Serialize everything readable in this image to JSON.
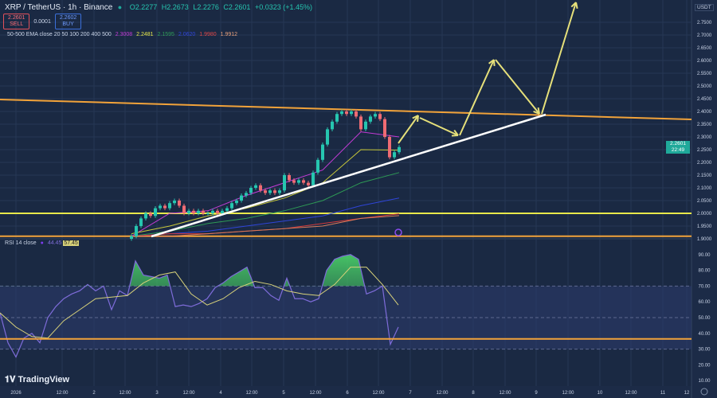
{
  "header": {
    "symbol": "XRP / TetherUS · 1h · Binance",
    "ohlc": [
      "O2.2277",
      "H2.2673",
      "L2.2276",
      "C2.2601",
      "+0.0323 (+1.45%)"
    ],
    "sell_price": "2.2601",
    "sell_label": "SELL",
    "spread": "0.0001",
    "buy_price": "2.2602",
    "buy_label": "BUY",
    "ema_label": "50-500 EMA close 20 50 100 200 400 500",
    "ema_values": [
      "2.3008",
      "2.2481",
      "2.1595",
      "2.0620",
      "1.9980",
      "1.9912"
    ],
    "rsi_label": "RSI 14 close",
    "rsi_values": [
      "44.45",
      "57.45"
    ]
  },
  "axis": {
    "unit": "USDT",
    "price_ticks": [
      "2.7500",
      "2.7000",
      "2.6500",
      "2.6000",
      "2.5500",
      "2.5000",
      "2.4500",
      "2.4000",
      "2.3500",
      "2.3000",
      "2.2500",
      "2.2000",
      "2.1500",
      "2.1000",
      "2.0500",
      "2.0000",
      "1.9500",
      "1.9000"
    ],
    "last_price": "2.2601",
    "countdown": "22:49",
    "rsi_ticks": [
      "90.00",
      "80.00",
      "70.00",
      "60.00",
      "50.00",
      "40.00",
      "30.00",
      "20.00",
      "10.00"
    ],
    "time_ticks": [
      "2026",
      "12:00",
      "2",
      "12:00",
      "3",
      "12:00",
      "4",
      "12:00",
      "5",
      "12:00",
      "6",
      "12:00",
      "7",
      "12:00",
      "8",
      "12:00",
      "9",
      "12:00",
      "10",
      "12:00",
      "11",
      "12"
    ]
  },
  "brand": "TradingView",
  "colors": {
    "background": "#1a2943",
    "up": "#26c6b0",
    "down": "#ef6b73",
    "ema": [
      "#c43bd6",
      "#c8c83a",
      "#2e9a55",
      "#2f45d8",
      "#d23a3a",
      "#d77a5a"
    ],
    "rsi": "#7e6cd9",
    "rsi_ma": "#d8d27a",
    "resistance": "#f2a33a",
    "support": "#e8e84a",
    "trendline": "#ffffff",
    "projection": "#e6e07a"
  },
  "chart_data": [
    {
      "type": "candlestick",
      "title": "XRP / TetherUS · 1h · Binance",
      "ylim": [
        1.9,
        2.77
      ],
      "closes": [
        1.91,
        1.95,
        1.98,
        2.0,
        1.99,
        2.02,
        2.03,
        2.02,
        2.04,
        2.05,
        2.03,
        2.0,
        2.01,
        2.0,
        2.01,
        2.0,
        2.0,
        2.01,
        2.0,
        2.01,
        2.02,
        2.04,
        2.05,
        2.07,
        2.08,
        2.1,
        2.11,
        2.09,
        2.08,
        2.09,
        2.08,
        2.09,
        2.15,
        2.13,
        2.12,
        2.13,
        2.12,
        2.11,
        2.16,
        2.21,
        2.27,
        2.33,
        2.36,
        2.39,
        2.4,
        2.39,
        2.4,
        2.38,
        2.33,
        2.36,
        2.38,
        2.39,
        2.37,
        2.3,
        2.22,
        2.24,
        2.26
      ],
      "ema_series": [
        {
          "name": "EMA 20",
          "values": [
            1.91,
            2.0,
            2.01,
            2.07,
            2.12,
            2.17,
            2.32,
            2.3
          ]
        },
        {
          "name": "EMA 50",
          "values": [
            1.92,
            1.95,
            1.99,
            2.02,
            2.06,
            2.12,
            2.25,
            2.248
          ]
        },
        {
          "name": "EMA 100",
          "values": [
            1.91,
            1.93,
            1.96,
            1.98,
            2.01,
            2.05,
            2.12,
            2.16
          ]
        },
        {
          "name": "EMA 200",
          "values": [
            1.91,
            1.92,
            1.93,
            1.95,
            1.97,
            1.99,
            2.03,
            2.06
          ]
        },
        {
          "name": "EMA 400",
          "values": [
            1.91,
            1.92,
            1.92,
            1.93,
            1.94,
            1.96,
            1.98,
            1.998
          ]
        },
        {
          "name": "EMA 500",
          "values": [
            1.91,
            1.91,
            1.92,
            1.93,
            1.94,
            1.95,
            1.98,
            1.991
          ]
        }
      ],
      "horizontal_levels": [
        2.0,
        1.91
      ]
    },
    {
      "type": "line",
      "title": "RSI 14 close",
      "ylim": [
        0,
        100
      ],
      "bands": [
        30,
        50,
        70
      ],
      "level_line": 36.5,
      "rsi": [
        53,
        34,
        25,
        37,
        40,
        34,
        50,
        57,
        62,
        65,
        67,
        71,
        67,
        70,
        55,
        67,
        64,
        86,
        77,
        76,
        75,
        77,
        57,
        58,
        57,
        59,
        62,
        69,
        72,
        76,
        79,
        82,
        69,
        69,
        64,
        61,
        75,
        62,
        62,
        60,
        62,
        80,
        87,
        89,
        90,
        87,
        65,
        67,
        70,
        33,
        44
      ],
      "rsi_ma": [
        53,
        44,
        38,
        37,
        48,
        55,
        62,
        63,
        64,
        72,
        77,
        79,
        65,
        58,
        62,
        69,
        73,
        71,
        67,
        65,
        64,
        71,
        82,
        82,
        71,
        58
      ]
    }
  ]
}
